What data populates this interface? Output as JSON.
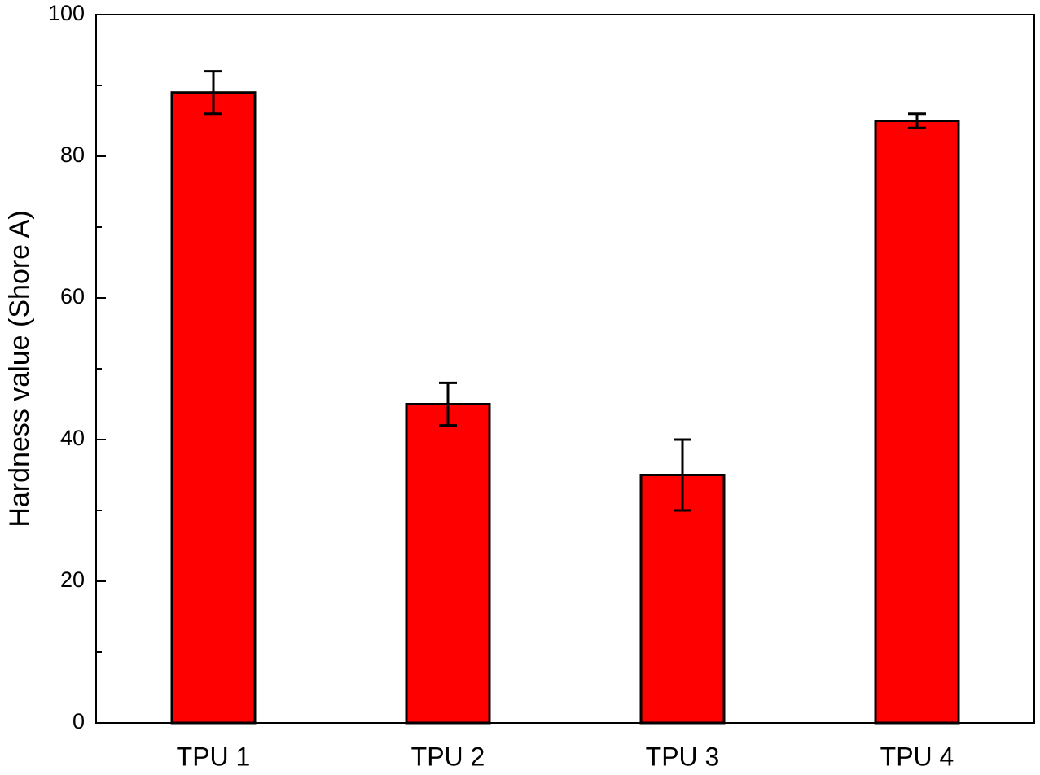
{
  "chart_data": {
    "type": "bar",
    "y_label": "Hardness value (Shore A)",
    "categories": [
      "TPU 1",
      "TPU 2",
      "TPU 3",
      "TPU 4"
    ],
    "values": [
      89,
      45,
      35,
      85
    ],
    "errors": [
      3,
      3,
      5,
      1
    ],
    "color": "#ff0000",
    "ylim": [
      0,
      100
    ],
    "yticks": [
      0,
      20,
      40,
      60,
      80,
      100
    ],
    "yticks_minor": [
      10,
      30,
      50,
      70,
      90
    ]
  }
}
